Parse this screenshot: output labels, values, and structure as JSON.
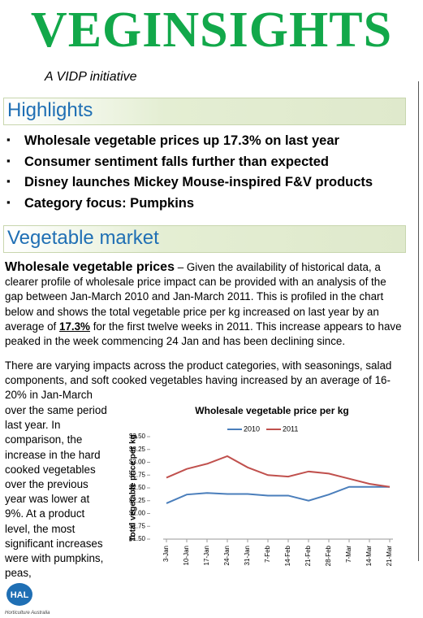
{
  "header": {
    "title": "VEGINSIGHTS",
    "subtitle": "A VIDP initiative"
  },
  "highlights": {
    "title": "Highlights",
    "items": [
      "Wholesale vegetable prices up 17.3% on last year",
      "Consumer sentiment falls further than expected",
      "Disney launches Mickey Mouse-inspired F&V products",
      "Category focus: Pumpkins"
    ]
  },
  "section": {
    "title": "Vegetable market",
    "paragraph1": {
      "lead": "Wholesale vegetable prices",
      "text1": " – Given the availability of historical data, a clearer profile of wholesale price impact can be provided with an analysis of the gap between Jan-March 2010 and Jan-March 2011. This is profiled in the chart below and shows the total vegetable price per kg increased on last year by an average of ",
      "emphasis": "17.3%",
      "text2": " for the first twelve weeks in 2011. This increase appears to have peaked in the week commencing 24 Jan and has been declining since."
    },
    "paragraph2": "There are varying impacts across the product categories, with seasonings, salad components, and soft cooked vegetables having increased by an average of 16-20% in Jan-March",
    "column_text": "over the same period last year. In comparison, the increase in the hard cooked vegetables over the previous year was lower at 9%. At a product level, the most significant increases were with pumpkins, peas,"
  },
  "logo": {
    "text": "HAL",
    "caption": "Horticulture Australia"
  },
  "chart_data": {
    "type": "line",
    "title": "Wholesale vegetable price per kg",
    "y_label": "Total vegetable price per kg",
    "categories": [
      "3-Jan",
      "10-Jan",
      "17-Jan",
      "24-Jan",
      "31-Jan",
      "7-Feb",
      "14-Feb",
      "21-Feb",
      "28-Feb",
      "7-Mar",
      "14-Mar",
      "21-Mar"
    ],
    "series": [
      {
        "name": "2010",
        "color": "#4a7ebb",
        "values": [
          2.2,
          2.37,
          2.4,
          2.38,
          2.38,
          2.35,
          2.35,
          2.25,
          2.37,
          2.52,
          2.52,
          2.52
        ]
      },
      {
        "name": "2011",
        "color": "#c0504d",
        "values": [
          2.7,
          2.87,
          2.97,
          3.12,
          2.9,
          2.75,
          2.72,
          2.82,
          2.78,
          2.68,
          2.58,
          2.52
        ]
      }
    ],
    "ylim": [
      1.5,
      3.5
    ],
    "yticks": [
      {
        "value": 1.5,
        "label": "$1.50"
      },
      {
        "value": 1.75,
        "label": "$1.75"
      },
      {
        "value": 2,
        "label": "$2.00"
      },
      {
        "value": 2.25,
        "label": "$2.25"
      },
      {
        "value": 2.5,
        "label": "$2.50"
      },
      {
        "value": 2.75,
        "label": "$2.75"
      },
      {
        "value": 3,
        "label": "$3.00"
      },
      {
        "value": 3.25,
        "label": "$3.25"
      },
      {
        "value": 3.5,
        "label": "$3.50"
      }
    ],
    "grid": false,
    "legend": "top"
  }
}
